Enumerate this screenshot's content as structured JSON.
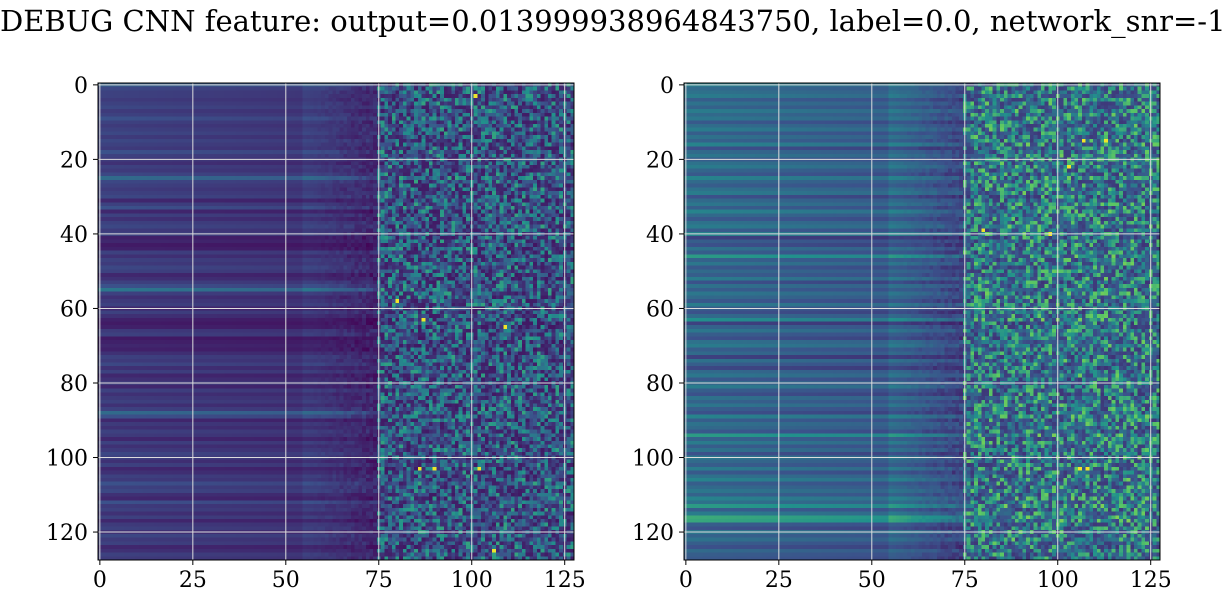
{
  "figure": {
    "title": "DEBUG CNN feature: output=0.013999938964843750, label=0.0, network_snr=-1"
  },
  "chart_data": [
    {
      "type": "heatmap",
      "title": "",
      "xlabel": "",
      "ylabel": "",
      "x_ticks": [
        0,
        25,
        50,
        75,
        100,
        125
      ],
      "y_ticks": [
        0,
        20,
        40,
        60,
        80,
        100,
        120
      ],
      "xlim": [
        -0.5,
        127.5
      ],
      "ylim": [
        127.5,
        -0.5
      ],
      "grid": true,
      "colormap": "viridis",
      "shape": [
        128,
        128
      ],
      "row_base": [
        0.32,
        0.22,
        0.2,
        0.2,
        0.18,
        0.2,
        0.22,
        0.18,
        0.2,
        0.25,
        0.2,
        0.18,
        0.2,
        0.22,
        0.18,
        0.22,
        0.2,
        0.18,
        0.25,
        0.2,
        0.18,
        0.15,
        0.2,
        0.18,
        0.22,
        0.35,
        0.22,
        0.2,
        0.18,
        0.2,
        0.22,
        0.12,
        0.2,
        0.25,
        0.12,
        0.2,
        0.15,
        0.2,
        0.22,
        0.18,
        0.2,
        0.1,
        0.12,
        0.08,
        0.1,
        0.2,
        0.15,
        0.2,
        0.18,
        0.22,
        0.2,
        0.12,
        0.15,
        0.2,
        0.25,
        0.4,
        0.2,
        0.15,
        0.18,
        0.2,
        0.12,
        0.2,
        0.15,
        0.1,
        0.08,
        0.1,
        0.18,
        0.2,
        0.08,
        0.1,
        0.12,
        0.1,
        0.15,
        0.2,
        0.18,
        0.22,
        0.15,
        0.2,
        0.12,
        0.15,
        0.18,
        0.12,
        0.2,
        0.15,
        0.18,
        0.2,
        0.15,
        0.2,
        0.35,
        0.25,
        0.12,
        0.18,
        0.15,
        0.2,
        0.18,
        0.12,
        0.2,
        0.15,
        0.18,
        0.22,
        0.2,
        0.15,
        0.2,
        0.12,
        0.15,
        0.2,
        0.18,
        0.25,
        0.2,
        0.22,
        0.15,
        0.12,
        0.25,
        0.18,
        0.2,
        0.15,
        0.2,
        0.12,
        0.18,
        0.2,
        0.15,
        0.22,
        0.18,
        0.2,
        0.12,
        0.15,
        0.2,
        0.18
      ],
      "column_profile": "smooth 0-75, noisy texture 75-127",
      "hotspots": [
        {
          "x": 101,
          "y": 3
        },
        {
          "x": 102,
          "y": 103
        },
        {
          "x": 109,
          "y": 65
        },
        {
          "x": 87,
          "y": 63
        },
        {
          "x": 80,
          "y": 58
        },
        {
          "x": 86,
          "y": 103
        },
        {
          "x": 90,
          "y": 103
        },
        {
          "x": 106,
          "y": 125
        }
      ]
    },
    {
      "type": "heatmap",
      "title": "",
      "xlabel": "",
      "ylabel": "",
      "x_ticks": [
        0,
        25,
        50,
        75,
        100,
        125
      ],
      "y_ticks": [
        0,
        20,
        40,
        60,
        80,
        100,
        120
      ],
      "xlim": [
        -0.5,
        127.5
      ],
      "ylim": [
        127.5,
        -0.5
      ],
      "grid": true,
      "colormap": "viridis",
      "shape": [
        128,
        128
      ],
      "row_base": [
        0.45,
        0.35,
        0.38,
        0.42,
        0.3,
        0.38,
        0.32,
        0.42,
        0.35,
        0.4,
        0.28,
        0.36,
        0.42,
        0.3,
        0.38,
        0.32,
        0.45,
        0.25,
        0.35,
        0.4,
        0.3,
        0.38,
        0.42,
        0.33,
        0.28,
        0.45,
        0.35,
        0.3,
        0.38,
        0.42,
        0.25,
        0.35,
        0.4,
        0.3,
        0.45,
        0.35,
        0.28,
        0.38,
        0.42,
        0.3,
        0.45,
        0.2,
        0.3,
        0.25,
        0.38,
        0.3,
        0.55,
        0.32,
        0.4,
        0.28,
        0.35,
        0.3,
        0.42,
        0.25,
        0.38,
        0.3,
        0.4,
        0.35,
        0.28,
        0.42,
        0.3,
        0.25,
        0.35,
        0.5,
        0.2,
        0.32,
        0.4,
        0.3,
        0.25,
        0.38,
        0.42,
        0.3,
        0.35,
        0.2,
        0.38,
        0.3,
        0.22,
        0.35,
        0.4,
        0.28,
        0.35,
        0.42,
        0.3,
        0.25,
        0.38,
        0.32,
        0.4,
        0.3,
        0.25,
        0.45,
        0.3,
        0.38,
        0.35,
        0.28,
        0.55,
        0.32,
        0.42,
        0.3,
        0.38,
        0.25,
        0.4,
        0.35,
        0.3,
        0.42,
        0.28,
        0.38,
        0.45,
        0.3,
        0.35,
        0.4,
        0.32,
        0.45,
        0.38,
        0.55,
        0.3,
        0.42,
        0.62,
        0.6,
        0.3,
        0.25,
        0.4,
        0.32,
        0.38,
        0.3,
        0.25,
        0.35,
        0.3,
        0.28
      ],
      "column_profile": "smooth 0-75, noisy texture 75-127",
      "hotspots": [
        {
          "x": 106,
          "y": 103
        },
        {
          "x": 108,
          "y": 103
        },
        {
          "x": 80,
          "y": 39
        },
        {
          "x": 98,
          "y": 40
        },
        {
          "x": 107,
          "y": 15
        },
        {
          "x": 113,
          "y": 15
        },
        {
          "x": 103,
          "y": 22
        }
      ]
    }
  ],
  "colors": {
    "grid": "#dddddd",
    "axis": "#000000",
    "viridis": [
      "#440154",
      "#3b528b",
      "#21908d",
      "#5dc863",
      "#fde725"
    ]
  }
}
